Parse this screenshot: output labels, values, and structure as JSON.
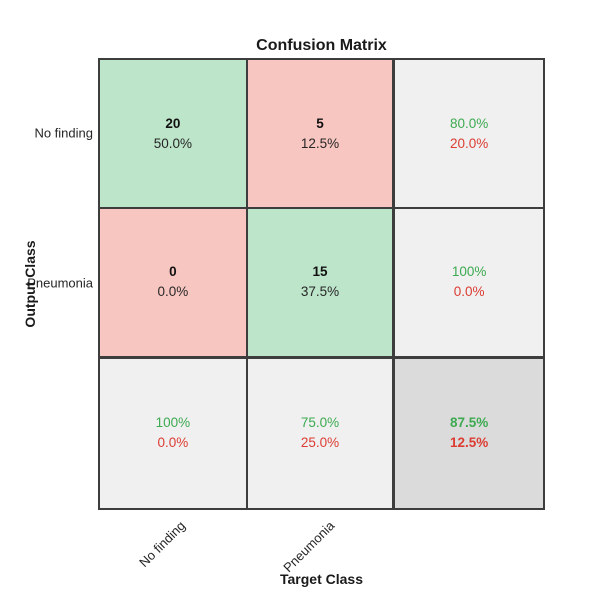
{
  "title": "Confusion Matrix",
  "axis": {
    "x_label": "Target Class",
    "y_label": "Output Class",
    "x_ticks": {
      "0": "No finding",
      "1": "Pneumonia"
    },
    "y_ticks": {
      "0": "No finding",
      "1": "Pneumonia"
    }
  },
  "cells": {
    "r0c0": {
      "line1": "20",
      "line2": "50.0%"
    },
    "r0c1": {
      "line1": "5",
      "line2": "12.5%"
    },
    "r0c2": {
      "line1": "80.0%",
      "line2": "20.0%"
    },
    "r1c0": {
      "line1": "0",
      "line2": "0.0%"
    },
    "r1c1": {
      "line1": "15",
      "line2": "37.5%"
    },
    "r1c2": {
      "line1": "100%",
      "line2": "0.0%"
    },
    "r2c0": {
      "line1": "100%",
      "line2": "0.0%"
    },
    "r2c1": {
      "line1": "75.0%",
      "line2": "25.0%"
    },
    "r2c2": {
      "line1": "87.5%",
      "line2": "12.5%"
    }
  },
  "colors": {
    "correct_cell_bg": "#bde5ca",
    "incorrect_cell_bg": "#f8c6c0",
    "summary_cell_bg": "#f0f0f0",
    "total_cell_bg": "#dbdbdb",
    "positive_text": "#3caa50",
    "negative_text": "#dc3c32",
    "grid_border": "#3d3d3d"
  },
  "chart_data": {
    "type": "heatmap",
    "title": "Confusion Matrix",
    "xlabel": "Target Class",
    "ylabel": "Output Class",
    "classes": [
      "No finding",
      "Pneumonia"
    ],
    "counts": [
      [
        20,
        5
      ],
      [
        0,
        15
      ]
    ],
    "percent_of_total": [
      [
        "50.0%",
        "12.5%"
      ],
      [
        "0.0%",
        "37.5%"
      ]
    ],
    "row_summary": [
      {
        "row": "No finding",
        "correct": "80.0%",
        "incorrect": "20.0%"
      },
      {
        "row": "Pneumonia",
        "correct": "100%",
        "incorrect": "0.0%"
      }
    ],
    "column_summary": [
      {
        "column": "No finding",
        "correct": "100%",
        "incorrect": "0.0%"
      },
      {
        "column": "Pneumonia",
        "correct": "75.0%",
        "incorrect": "25.0%"
      }
    ],
    "overall": {
      "accuracy": "87.5%",
      "error": "12.5%"
    },
    "legend_position": "none",
    "grid": true
  }
}
